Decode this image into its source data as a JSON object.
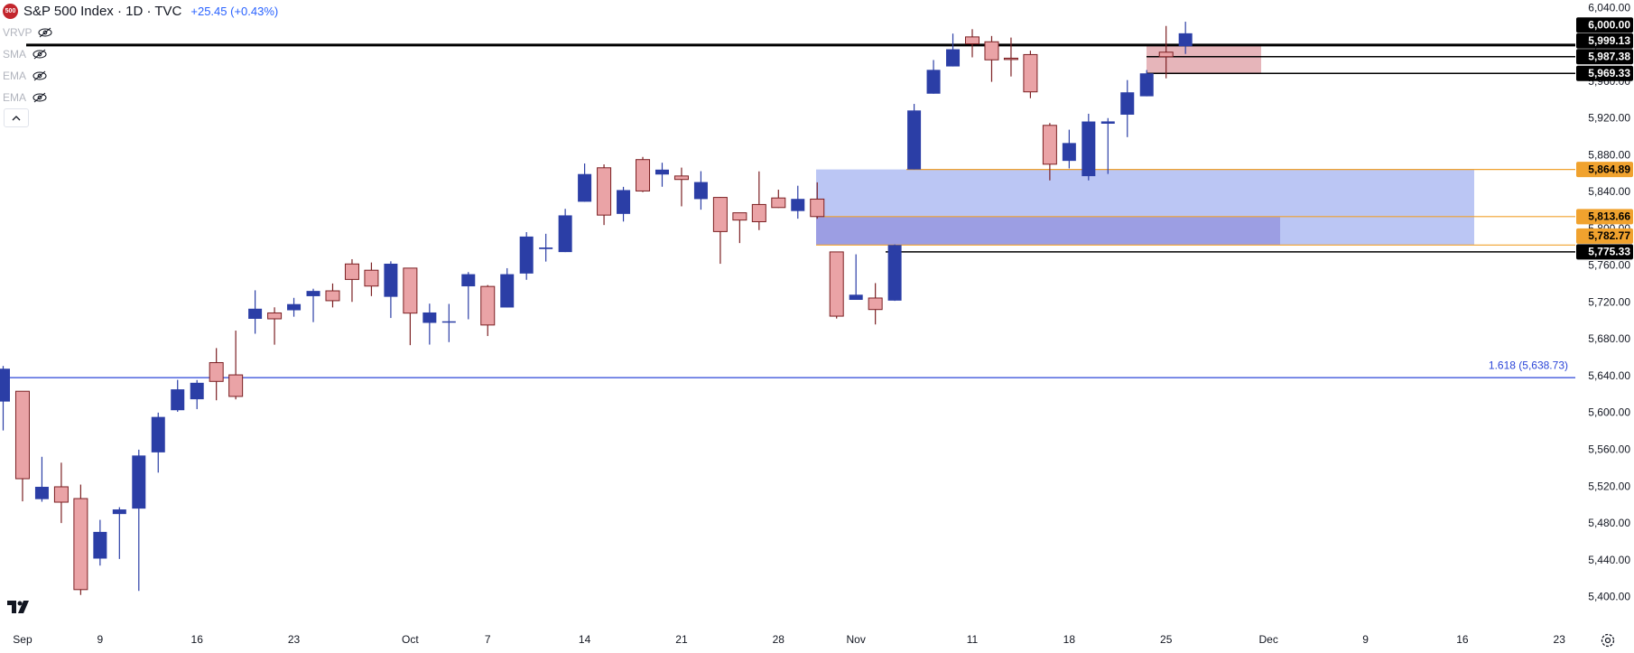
{
  "header": {
    "symbol_badge": "500",
    "title": "S&P 500 Index · 1D · TVC",
    "change": "+25.45 (+0.43%)",
    "indicators": [
      "VRVP",
      "SMA",
      "EMA",
      "EMA"
    ]
  },
  "chart_data": {
    "type": "candlestick",
    "x": [
      "Aug 30",
      "Sep 3",
      "Sep 4",
      "Sep 5",
      "Sep 6",
      "Sep 9",
      "Sep 10",
      "Sep 11",
      "Sep 12",
      "Sep 13",
      "Sep 16",
      "Sep 17",
      "Sep 18",
      "Sep 19",
      "Sep 20",
      "Sep 23",
      "Sep 24",
      "Sep 25",
      "Sep 26",
      "Sep 27",
      "Sep 30",
      "Oct 1",
      "Oct 2",
      "Oct 3",
      "Oct 4",
      "Oct 7",
      "Oct 8",
      "Oct 9",
      "Oct 10",
      "Oct 11",
      "Oct 14",
      "Oct 15",
      "Oct 16",
      "Oct 17",
      "Oct 18",
      "Oct 21",
      "Oct 22",
      "Oct 23",
      "Oct 24",
      "Oct 25",
      "Oct 28",
      "Oct 29",
      "Oct 30",
      "Oct 31",
      "Nov 1",
      "Nov 4",
      "Nov 5",
      "Nov 6",
      "Nov 7",
      "Nov 8",
      "Nov 11",
      "Nov 12",
      "Nov 13",
      "Nov 14",
      "Nov 15",
      "Nov 18",
      "Nov 19",
      "Nov 20",
      "Nov 21",
      "Nov 22",
      "Nov 25",
      "Nov 26"
    ],
    "open": [
      5612.7,
      5623.9,
      5506.7,
      5520.1,
      5507.3,
      5442.1,
      5490.5,
      5496.4,
      5557.5,
      5603.3,
      5615.2,
      5655.0,
      5641.7,
      5702.6,
      5709.0,
      5711.9,
      5727.2,
      5733.0,
      5762.2,
      5755.4,
      5726.5,
      5757.7,
      5698.2,
      5698.9,
      5737.9,
      5737.8,
      5714.9,
      5751.8,
      5778.4,
      5775.1,
      5829.8,
      5866.7,
      5816.6,
      5875.6,
      5859.4,
      5857.8,
      5832.7,
      5834.5,
      5817.8,
      5826.8,
      5833.9,
      5819.7,
      5832.7,
      5775.3,
      5723.2,
      5725.2,
      5722.4,
      5864.9,
      5947.2,
      5976.8,
      6008.9,
      6003.6,
      5985.8,
      5989.7,
      5912.8,
      5874.2,
      5857.6,
      5914.6,
      5924.4,
      5944.4,
      5992.3,
      5998.8
    ],
    "high": [
      5651.4,
      5623.9,
      5552.7,
      5546.3,
      5522.5,
      5484.2,
      5497.9,
      5560.4,
      5600.7,
      5636.3,
      5636.1,
      5670.8,
      5689.8,
      5733.6,
      5715.1,
      5725.4,
      5735.3,
      5741.0,
      5767.4,
      5763.8,
      5765.1,
      5757.7,
      5719.1,
      5718.8,
      5753.4,
      5739.3,
      5757.6,
      5796.8,
      5795.0,
      5822.1,
      5871.4,
      5870.4,
      5846.0,
      5878.5,
      5872.2,
      5866.9,
      5863.0,
      5834.9,
      5817.8,
      5862.8,
      5842.9,
      5847.2,
      5850.9,
      5775.3,
      5772.7,
      5741.4,
      5783.4,
      5936.1,
      5983.8,
      6012.5,
      6017.3,
      6009.9,
      6008.2,
      5993.9,
      5915.3,
      5908.1,
      5925.4,
      5920.7,
      5962.0,
      5972.9,
      6020.8,
      6025.4
    ],
    "low": [
      5581.3,
      5504.3,
      5503.9,
      5480.7,
      5402.6,
      5434.5,
      5441.7,
      5407.0,
      5535.5,
      5601.6,
      5604.5,
      5614.1,
      5615.1,
      5686.4,
      5674.5,
      5704.9,
      5699.0,
      5715.0,
      5721.0,
      5727.3,
      5703.5,
      5674.0,
      5674.6,
      5677.3,
      5702.1,
      5683.9,
      5714.9,
      5745.0,
      5764.8,
      5775.1,
      5829.8,
      5804.5,
      5808.3,
      5840.3,
      5846.1,
      5824.8,
      5821.2,
      5762.4,
      5784.9,
      5799.0,
      5823.1,
      5811.4,
      5811.3,
      5702.9,
      5723.2,
      5696.5,
      5722.1,
      5864.9,
      5947.2,
      5976.8,
      5986.7,
      5960.1,
      5965.9,
      5942.3,
      5853.0,
      5866.0,
      5853.0,
      5860.0,
      5900.0,
      5944.4,
      5963.9,
      5990.4
    ],
    "close": [
      5648.4,
      5528.9,
      5520.1,
      5503.4,
      5408.4,
      5471.1,
      5495.5,
      5554.1,
      5596.0,
      5626.0,
      5633.1,
      5634.6,
      5618.3,
      5713.6,
      5702.6,
      5718.6,
      5732.9,
      5722.3,
      5745.4,
      5738.2,
      5762.5,
      5708.8,
      5709.5,
      5699.9,
      5751.1,
      5695.9,
      5751.1,
      5792.0,
      5780.1,
      5815.0,
      5859.9,
      5815.3,
      5842.5,
      5841.5,
      5864.7,
      5854.0,
      5851.2,
      5797.4,
      5809.9,
      5808.1,
      5823.5,
      5832.9,
      5813.7,
      5705.5,
      5728.8,
      5712.7,
      5782.8,
      5929.0,
      5973.1,
      5995.5,
      6001.4,
      5984.0,
      5985.4,
      5949.2,
      5870.6,
      5893.6,
      5917.0,
      5917.1,
      5948.7,
      5969.3,
      5987.4,
      6012.83
    ],
    "up_color": "#2b3ea6",
    "down_color": "#eaa3a6",
    "down_border_color": "#7b1f22",
    "ylim": [
      5367,
      6049
    ],
    "yticks": [
      {
        "value": 6040,
        "label": "6,040.00"
      },
      {
        "value": 6000,
        "label": "6,000.00"
      },
      {
        "value": 5960,
        "label": "5,960.00"
      },
      {
        "value": 5920,
        "label": "5,920.00"
      },
      {
        "value": 5880,
        "label": "5,880.00"
      },
      {
        "value": 5840,
        "label": "5,840.00"
      },
      {
        "value": 5800,
        "label": "5,800.00"
      },
      {
        "value": 5760,
        "label": "5,760.00"
      },
      {
        "value": 5720,
        "label": "5,720.00"
      },
      {
        "value": 5680,
        "label": "5,680.00"
      },
      {
        "value": 5640,
        "label": "5,640.00"
      },
      {
        "value": 5600,
        "label": "5,600.00"
      },
      {
        "value": 5560,
        "label": "5,560.00"
      },
      {
        "value": 5520,
        "label": "5,520.00"
      },
      {
        "value": 5480,
        "label": "5,480.00"
      },
      {
        "value": 5440,
        "label": "5,440.00"
      },
      {
        "value": 5400,
        "label": "5,400.00"
      }
    ],
    "xticks": [
      {
        "value": "Sep 3",
        "label": "Sep"
      },
      {
        "value": "Sep 9",
        "label": "9"
      },
      {
        "value": "Sep 16",
        "label": "16"
      },
      {
        "value": "Sep 23",
        "label": "23"
      },
      {
        "value": "Oct 1",
        "label": "Oct"
      },
      {
        "value": "Oct 7",
        "label": "7"
      },
      {
        "value": "Oct 14",
        "label": "14"
      },
      {
        "value": "Oct 21",
        "label": "21"
      },
      {
        "value": "Oct 28",
        "label": "28"
      },
      {
        "value": "Nov 1",
        "label": "Nov"
      },
      {
        "value": "Nov 11",
        "label": "11"
      },
      {
        "value": "Nov 18",
        "label": "18"
      },
      {
        "value": "Nov 25",
        "label": "25"
      },
      {
        "value": "Dec 2",
        "label": "Dec"
      },
      {
        "value": "Dec 9",
        "label": "9"
      },
      {
        "value": "Dec 16",
        "label": "16"
      },
      {
        "value": "Dec 23",
        "label": "23"
      }
    ],
    "levels": [
      {
        "value": 6000,
        "label": "6,000.00",
        "color": "#000000"
      },
      {
        "value": 5999.13,
        "label": "5,999.13",
        "color": "#000000"
      },
      {
        "value": 5987.38,
        "label": "5,987.38",
        "color": "#000000"
      },
      {
        "value": 5969.33,
        "label": "5,969.33",
        "color": "#000000"
      },
      {
        "value": 5864.89,
        "label": "5,864.89",
        "color": "#f0a22e"
      },
      {
        "value": 5813.66,
        "label": "5,813.66",
        "color": "#f0a22e"
      },
      {
        "value": 5782.77,
        "label": "5,782.77",
        "color": "#f0a22e"
      },
      {
        "value": 5775.33,
        "label": "5,775.33",
        "color": "#000000"
      }
    ],
    "fib": {
      "value": 5638.73,
      "label": "1.618 (5,638.73)",
      "color": "#2b45d8"
    }
  }
}
